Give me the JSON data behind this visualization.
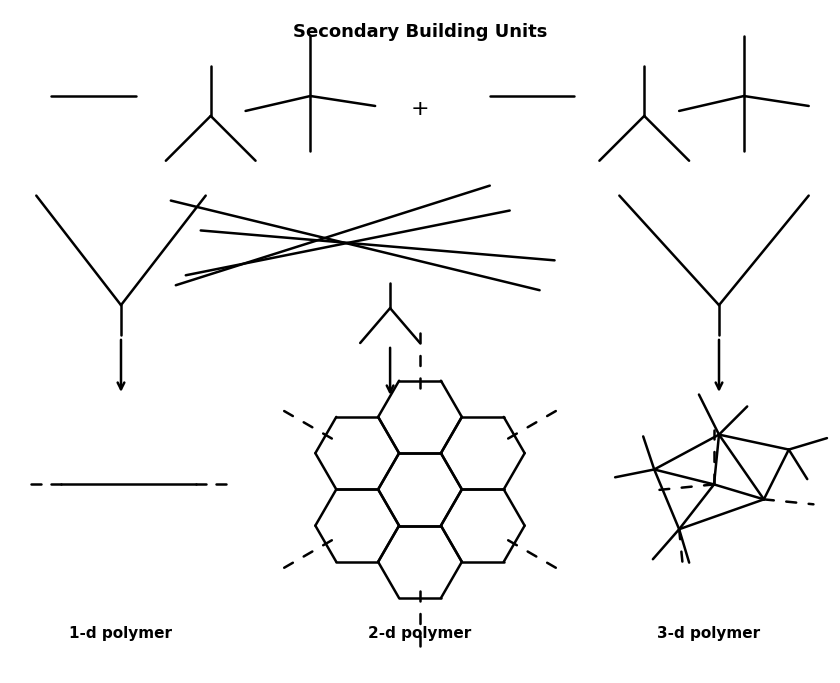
{
  "title": "Secondary Building Units",
  "title_fontsize": 13,
  "line_color": "black",
  "line_width": 1.8,
  "label_1d": "1-d polymer",
  "label_2d": "2-d polymer",
  "label_3d": "3-d polymer",
  "label_fontsize": 11,
  "figsize": [
    8.4,
    6.83
  ],
  "dpi": 100
}
